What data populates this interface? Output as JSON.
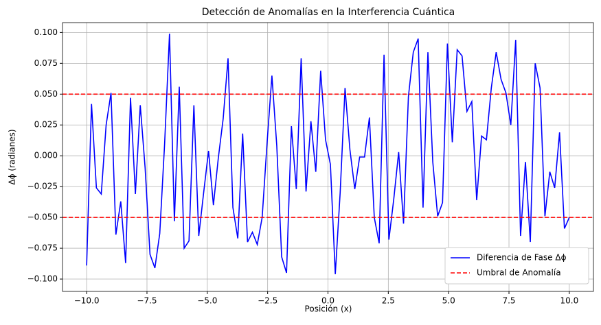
{
  "chart_data": {
    "type": "line",
    "title": "Detección de Anomalías en la Interferencia Cuántica",
    "x_label": "Posición (x)",
    "y_label": "Δϕ (radianes)",
    "x": [
      -10,
      -9.798,
      -9.596,
      -9.394,
      -9.192,
      -8.99,
      -8.788,
      -8.586,
      -8.384,
      -8.182,
      -7.98,
      -7.778,
      -7.576,
      -7.374,
      -7.172,
      -6.97,
      -6.768,
      -6.566,
      -6.364,
      -6.162,
      -5.96,
      -5.758,
      -5.556,
      -5.354,
      -5.152,
      -4.949,
      -4.747,
      -4.545,
      -4.343,
      -4.141,
      -3.939,
      -3.737,
      -3.535,
      -3.333,
      -3.131,
      -2.929,
      -2.727,
      -2.525,
      -2.323,
      -2.121,
      -1.919,
      -1.717,
      -1.515,
      -1.313,
      -1.111,
      -0.909,
      -0.707,
      -0.505,
      -0.303,
      -0.101,
      0.101,
      0.303,
      0.505,
      0.707,
      0.909,
      1.111,
      1.313,
      1.515,
      1.717,
      1.919,
      2.121,
      2.323,
      2.525,
      2.727,
      2.929,
      3.131,
      3.333,
      3.535,
      3.737,
      3.939,
      4.141,
      4.343,
      4.545,
      4.747,
      4.949,
      5.152,
      5.354,
      5.556,
      5.758,
      5.96,
      6.162,
      6.364,
      6.566,
      6.768,
      6.97,
      7.172,
      7.374,
      7.576,
      7.778,
      7.98,
      8.182,
      8.384,
      8.586,
      8.788,
      8.99,
      9.192,
      9.394,
      9.596,
      9.798,
      10
    ],
    "series": [
      {
        "name": "Diferencia de Fase Δϕ",
        "color": "#0000ff",
        "values": [
          -0.089,
          0.042,
          -0.026,
          -0.031,
          0.025,
          0.051,
          -0.064,
          -0.037,
          -0.087,
          0.047,
          -0.031,
          0.041,
          -0.01,
          -0.08,
          -0.091,
          -0.063,
          0.01,
          0.099,
          -0.053,
          0.056,
          -0.075,
          -0.069,
          0.041,
          -0.065,
          -0.03,
          0.004,
          -0.04,
          -0.002,
          0.03,
          0.079,
          -0.042,
          -0.067,
          0.018,
          -0.07,
          -0.062,
          -0.072,
          -0.05,
          0.01,
          0.065,
          0.008,
          -0.082,
          -0.095,
          0.024,
          -0.027,
          0.079,
          -0.029,
          0.028,
          -0.013,
          0.069,
          0.013,
          -0.007,
          -0.096,
          -0.03,
          0.055,
          0.005,
          -0.027,
          -0.001,
          -0.001,
          0.031,
          -0.05,
          -0.071,
          0.082,
          -0.068,
          -0.035,
          0.003,
          -0.055,
          0.048,
          0.084,
          0.095,
          -0.042,
          0.084,
          -0.005,
          -0.049,
          -0.038,
          0.091,
          0.011,
          0.086,
          0.081,
          0.036,
          0.044,
          -0.036,
          0.016,
          0.013,
          0.055,
          0.084,
          0.062,
          0.051,
          0.025,
          0.094,
          -0.065,
          -0.005,
          -0.07,
          0.075,
          0.055,
          -0.049,
          -0.013,
          -0.026,
          0.019,
          -0.059,
          -0.05
        ]
      }
    ],
    "threshold": {
      "name": "Umbral de Anomalía",
      "color": "#ff0000",
      "values": [
        0.05,
        -0.05
      ]
    },
    "xlim": [
      -11,
      11
    ],
    "ylim": [
      -0.11,
      0.108
    ],
    "xticks": [
      {
        "value": -10,
        "label": "−10.0"
      },
      {
        "value": -7.5,
        "label": "−7.5"
      },
      {
        "value": -5,
        "label": "−5.0"
      },
      {
        "value": -2.5,
        "label": "−2.5"
      },
      {
        "value": 0,
        "label": "0.0"
      },
      {
        "value": 2.5,
        "label": "2.5"
      },
      {
        "value": 5,
        "label": "5.0"
      },
      {
        "value": 7.5,
        "label": "7.5"
      },
      {
        "value": 10,
        "label": "10.0"
      }
    ],
    "yticks": [
      {
        "value": -0.1,
        "label": "−0.100"
      },
      {
        "value": -0.075,
        "label": "−0.075"
      },
      {
        "value": -0.05,
        "label": "−0.050"
      },
      {
        "value": -0.025,
        "label": "−0.025"
      },
      {
        "value": 0,
        "label": "0.000"
      },
      {
        "value": 0.025,
        "label": "0.025"
      },
      {
        "value": 0.05,
        "label": "0.050"
      },
      {
        "value": 0.075,
        "label": "0.075"
      },
      {
        "value": 0.1,
        "label": "0.100"
      }
    ],
    "grid": true,
    "legend": "lower right"
  }
}
